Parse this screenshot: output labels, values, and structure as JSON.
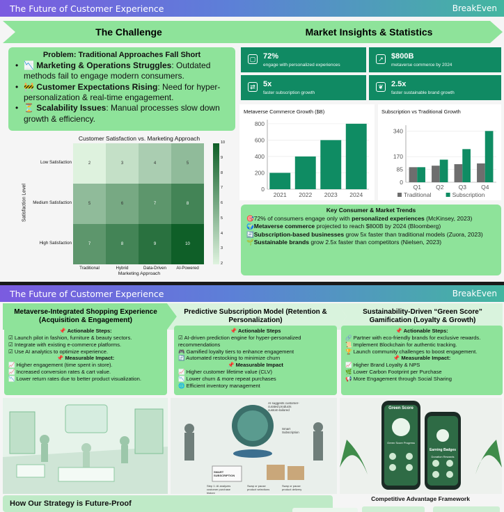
{
  "slide1": {
    "topbar": {
      "title": "The Future of Customer Experience",
      "brand": "BreakEven"
    },
    "chevrons": {
      "left": "The Challenge",
      "right": "Market Insights & Statistics"
    },
    "problem": {
      "title": "Problem: Traditional Approaches Fall Short",
      "items": [
        {
          "icon": "📉",
          "head": "Marketing & Operations Struggles",
          "text": ": Outdated methods fail to engage modern consumers."
        },
        {
          "icon": "🚧",
          "head": "Customer Expectations Rising",
          "text": ": Need for hyper-personalization & real-time engagement."
        },
        {
          "icon": "⏳",
          "head": "Scalability Issues",
          "text": ": Manual processes slow down growth & efficiency."
        }
      ]
    },
    "heatmap": {
      "title": "Customer Satisfaction vs. Marketing Approach",
      "ylabel": "Satisfaction Level",
      "xlabel": "Marketing Approach",
      "rows": [
        "Low Satisfaction",
        "Medium Satisfaction",
        "High Satisfaction"
      ],
      "cols": [
        "Traditional",
        "Hybrid",
        "Data-Driven",
        "AI-Powered"
      ],
      "values": [
        [
          2,
          3,
          4,
          5
        ],
        [
          5,
          6,
          7,
          8
        ],
        [
          7,
          8,
          9,
          10
        ]
      ],
      "colorbar_ticks": [
        "10",
        "9",
        "8",
        "7",
        "6",
        "5",
        "4",
        "3",
        "2"
      ]
    },
    "stats": [
      {
        "icon": "▢",
        "value": "72%",
        "desc": "engage with personalized experiences"
      },
      {
        "icon": "↗",
        "value": "$800B",
        "desc": "metaverse commerce by 2024"
      },
      {
        "icon": "⇄",
        "value": "5x",
        "desc": "faster subscription growth"
      },
      {
        "icon": "❦",
        "value": "2.5x",
        "desc": "faster sustainable brand growth"
      }
    ],
    "trends": {
      "title": "Key Consumer & Market Trends",
      "items": [
        {
          "icon": "🎯",
          "pre": "72% of consumers engage only with ",
          "bold": "personalized experiences",
          "post": " (McKinsey, 2023)"
        },
        {
          "icon": "🌍",
          "pre": "",
          "bold": "Metaverse commerce",
          "post": " projected to reach $800B by 2024 (Bloomberg)"
        },
        {
          "icon": "🔄",
          "pre": "",
          "bold": "Subscription-based businesses",
          "post": " grow 5x faster than traditional models (Zuora, 2023)"
        },
        {
          "icon": "🌱",
          "pre": "",
          "bold": "Sustainable brands",
          "post": " grow 2.5x faster than competitors (Nielsen, 2023)"
        }
      ]
    }
  },
  "chart_data": [
    {
      "type": "bar",
      "title": "Metaverse Commerce Growth ($B)",
      "categories": [
        "2021",
        "2022",
        "2023",
        "2024"
      ],
      "values": [
        200,
        400,
        600,
        800
      ],
      "ylim": [
        0,
        850
      ],
      "yticks": [
        0,
        200,
        400,
        600,
        800
      ],
      "color": "#0f8c63"
    },
    {
      "type": "bar",
      "title": "Subscription vs Traditional Growth",
      "categories": [
        "Q1",
        "Q2",
        "Q3",
        "Q4"
      ],
      "series": [
        {
          "name": "Traditional",
          "values": [
            100,
            110,
            120,
            125
          ],
          "color": "#6e6e6e"
        },
        {
          "name": "Subscription",
          "values": [
            100,
            150,
            220,
            340
          ],
          "color": "#0f8c63"
        }
      ],
      "ylim": [
        0,
        360
      ],
      "yticks": [
        0,
        85,
        170,
        340
      ]
    },
    {
      "type": "heatmap",
      "title": "Customer Satisfaction vs. Marketing Approach",
      "x": [
        "Traditional",
        "Hybrid",
        "Data-Driven",
        "AI-Powered"
      ],
      "y": [
        "Low Satisfaction",
        "Medium Satisfaction",
        "High Satisfaction"
      ],
      "values": [
        [
          2,
          3,
          4,
          5
        ],
        [
          5,
          6,
          7,
          8
        ],
        [
          7,
          8,
          9,
          10
        ]
      ],
      "xlabel": "Marketing Approach",
      "ylabel": "Satisfaction Level"
    }
  ],
  "slide2": {
    "topbar": {
      "title": "The Future of Customer Experience",
      "brand": "BreakEven"
    },
    "columns": [
      {
        "head": "Metaverse-Integrated Shopping Experience (Acquisition & Engagement)",
        "steps_title": "📌 Actionable Steps:",
        "steps": [
          "☑ Launch pilot in fashion, furniture & beauty sectors.",
          "☑ Integrate with existing e-commerce platforms.",
          "☑ Use AI analytics to optimize experience."
        ],
        "impact_title": "📌 Measurable Impact:",
        "impact": [
          "📈 Higher engagement (time spent in store).",
          "📈 Increased conversion rates & cart value.",
          "📉 Lower return rates due to better product visualization."
        ]
      },
      {
        "head": "Predictive Subscription Model (Retention & Personalization)",
        "steps_title": "📌 Actionable Steps",
        "steps": [
          "☑ AI-driven prediction engine for hyper-personalized recommendations",
          "🎮 Gamified loyalty tiers to enhance engagement",
          "🔄 Automated restocking to minimize churn"
        ],
        "impact_title": "📌 Measurable Impact",
        "impact": [
          "📈 Higher customer lifetime value (CLV)",
          "📉 Lower churn & more repeat purchases",
          "🌐 Efficient inventory management"
        ]
      },
      {
        "head": "Sustainability-Driven “Green Score” Gamification (Loyalty & Growth)",
        "steps_title": "📌 Actionable Steps:",
        "steps": [
          "🔗 Partner with eco-friendly brands for exclusive rewards.",
          "📜 Implement Blockchain for authentic tracking.",
          "🏆 Launch community challenges to boost engagement."
        ],
        "impact_title": "📌 Measurable Impact:",
        "impact": [
          "📈 Higher Brand Loyalty & NPS",
          "🌿 Lower Carbon Footprint per Purchase",
          "📢 More Engagement through Social Sharing"
        ]
      }
    ],
    "images": {
      "mid_bubble": "AI suggests customer-curated products custom-tailored",
      "mid_bubble2": "Smart Subscription",
      "mid_truck": "SMART SUBSCRIPTION",
      "mid_step1": "Step 1: AI analyzes customer purchase history",
      "mid_step2": "Swap or pause product selections",
      "mid_step3": "Swap or pause product delivery",
      "phone_title": "Green Score",
      "phone_progress": "Green Score Progress",
      "phone_badges": "Earning Badges",
      "phone_rewards": "Donation Rewards"
    },
    "bottom": {
      "title": "How Our Strategy is Future-Proof",
      "framework": "Competitive Advantage Framework"
    }
  }
}
